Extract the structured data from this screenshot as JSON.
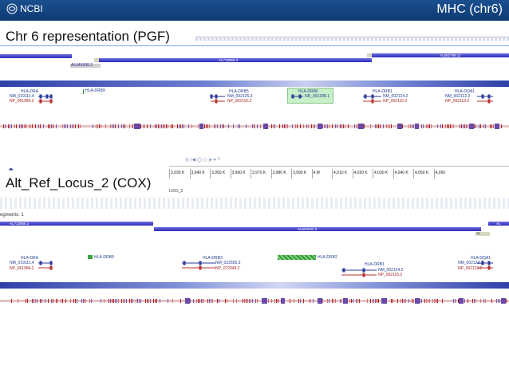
{
  "header": {
    "logo_text": "NCBI",
    "title": "MHC (chr6)"
  },
  "section1": {
    "label": "Chr 6 representation (PGF)",
    "contigs": [
      {
        "label": "AL713966.3"
      },
      {
        "label": "AL662789.11"
      },
      {
        "label": "AL645938.2"
      }
    ],
    "genes": {
      "dra": "HLA-DRA",
      "drb9": "HLA-DRB9",
      "drb5": "HLA-DRB5",
      "drb6": "HLA-DRB6",
      "drb1": "HLA-DRB1",
      "dqa1": "HLA-DQA1"
    },
    "transcripts": {
      "dra_nm": "NM_019111.4",
      "dra_np": "NP_061984.2",
      "drb5_nm": "NM_002125.3",
      "drb5_np": "NP_002116.2",
      "drb6_nr": "NR_001298.1",
      "drb1_nm": "NM_002124.2",
      "drb1_np": "NP_002115.2",
      "dqa1_nm": "NM_002122.3",
      "dqa1_np": "NP_002113.2"
    },
    "toolbar_glyphs": "◎ |◀ ◯ ◇ |▸ ▾ ?"
  },
  "section2": {
    "label": "Alt_Ref_Locus_2 (COX)",
    "locus_label": "LOCI_2",
    "segments_label": "egments: 1",
    "ticks": [
      "3,930 K",
      "3,940 K",
      "3,950 K",
      "3,960 K",
      "3,970 K",
      "3,980 K",
      "3,990 K",
      "4 M",
      "4,010 K",
      "4,020 K",
      "4,030 K",
      "4,040 K",
      "4,050 K",
      "4,060"
    ],
    "contigs": [
      {
        "label": "AL713966.3"
      },
      {
        "label": "AL662842.3"
      },
      {
        "label": "AL"
      },
      {
        "label": "AL"
      }
    ],
    "genes": {
      "dra": "HLA-DRA",
      "drb9": "HLA-DRB9",
      "drb3": "HLA-DRB3",
      "drb2": "HLA-DRB2",
      "drb1": "HLA-DRB1",
      "dqa1": "HLA-DQA1"
    },
    "transcripts": {
      "dra_nm": "NM_019111.4",
      "dra_np": "NP_061984.2",
      "drb3_nm": "NM_022555.3",
      "drb3_np": "NP_072049.2",
      "drb1_nm": "NM_002124.2",
      "drb1_np": "NP_002115.2",
      "dqa1_nm": "NM_002122.3",
      "dqa1_np": "NP_002113.2"
    }
  },
  "colors": {
    "header_bg": "#1b4f8f",
    "contig_blue": "#3a3ac8",
    "gene_green": "#4caf50",
    "variation_red": "#c0392b"
  }
}
